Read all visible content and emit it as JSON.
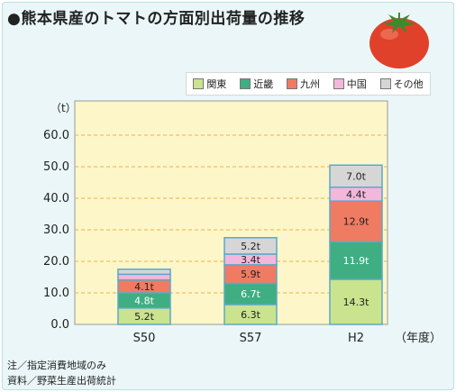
{
  "title": "●熊本県産のトマトの方面別出荷量の推移",
  "footnotes": [
    "注／指定消費地域のみ",
    "資料／野菜生産出荷統計"
  ],
  "legend": [
    {
      "label": "関東",
      "color": "#c9e38f"
    },
    {
      "label": "近畿",
      "color": "#3fae82"
    },
    {
      "label": "九州",
      "color": "#ef7b63"
    },
    {
      "label": "中国",
      "color": "#f3b7dc"
    },
    {
      "label": "その他",
      "color": "#d6d6d6"
    }
  ],
  "chart_data": {
    "type": "bar",
    "stacked": true,
    "categories": [
      "S50",
      "S57",
      "H2"
    ],
    "ylabel": "（t）",
    "xlabel": "（年度）",
    "ylim": [
      0,
      60
    ],
    "yticks": [
      "0.0",
      "10.0",
      "20.0",
      "30.0",
      "40.0",
      "50.0",
      "60.0"
    ],
    "grid": true,
    "series": [
      {
        "name": "関東",
        "values": [
          5.2,
          6.3,
          14.3
        ],
        "labels": [
          "5.2t",
          "6.3t",
          "14.3t"
        ],
        "color": "#c9e38f"
      },
      {
        "name": "近畿",
        "values": [
          4.8,
          6.7,
          11.9
        ],
        "labels": [
          "4.8t",
          "6.7t",
          "11.9t"
        ],
        "color": "#3fae82"
      },
      {
        "name": "九州",
        "values": [
          4.1,
          5.9,
          12.9
        ],
        "labels": [
          "4.1t",
          "5.9t",
          "12.9t"
        ],
        "color": "#ef7b63"
      },
      {
        "name": "中国",
        "values": [
          1.8,
          3.4,
          4.4
        ],
        "labels": [
          "",
          "3.4t",
          "4.4t"
        ],
        "color": "#f3b7dc"
      },
      {
        "name": "その他",
        "values": [
          1.6,
          5.2,
          7.0
        ],
        "labels": [
          "",
          "5.2t",
          "7.0t"
        ],
        "color": "#d6d6d6"
      }
    ],
    "colors": {
      "plot_bg": "#fdf6c9",
      "grid": "#e8b24a",
      "bar_edge": "#5aa9c9"
    }
  }
}
